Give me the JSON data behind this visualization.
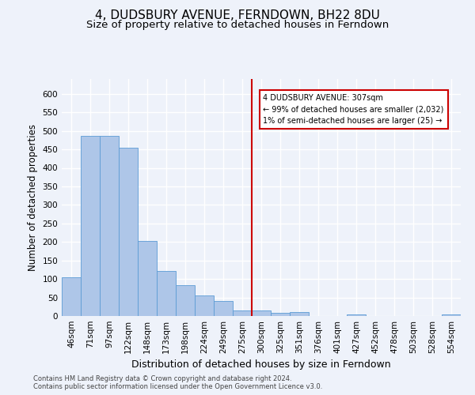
{
  "title": "4, DUDSBURY AVENUE, FERNDOWN, BH22 8DU",
  "subtitle": "Size of property relative to detached houses in Ferndown",
  "xlabel": "Distribution of detached houses by size in Ferndown",
  "ylabel": "Number of detached properties",
  "footer_line1": "Contains HM Land Registry data © Crown copyright and database right 2024.",
  "footer_line2": "Contains public sector information licensed under the Open Government Licence v3.0.",
  "categories": [
    "46sqm",
    "71sqm",
    "97sqm",
    "122sqm",
    "148sqm",
    "173sqm",
    "198sqm",
    "224sqm",
    "249sqm",
    "275sqm",
    "300sqm",
    "325sqm",
    "351sqm",
    "376sqm",
    "401sqm",
    "427sqm",
    "452sqm",
    "478sqm",
    "503sqm",
    "528sqm",
    "554sqm"
  ],
  "values": [
    105,
    487,
    487,
    454,
    203,
    121,
    84,
    55,
    40,
    16,
    15,
    8,
    10,
    0,
    0,
    5,
    0,
    0,
    0,
    0,
    5
  ],
  "bar_color": "#aec6e8",
  "bar_edge_color": "#5b9bd5",
  "annotation_text": "4 DUDSBURY AVENUE: 307sqm\n← 99% of detached houses are smaller (2,032)\n1% of semi-detached houses are larger (25) →",
  "annotation_box_color": "#ffffff",
  "annotation_box_edge_color": "#cc0000",
  "marker_line_color": "#cc0000",
  "ylim": [
    0,
    640
  ],
  "yticks": [
    0,
    50,
    100,
    150,
    200,
    250,
    300,
    350,
    400,
    450,
    500,
    550,
    600
  ],
  "background_color": "#eef2fa",
  "grid_color": "#ffffff",
  "title_fontsize": 11,
  "subtitle_fontsize": 9.5,
  "axis_label_fontsize": 8.5,
  "tick_fontsize": 7.5,
  "footer_fontsize": 6.0
}
